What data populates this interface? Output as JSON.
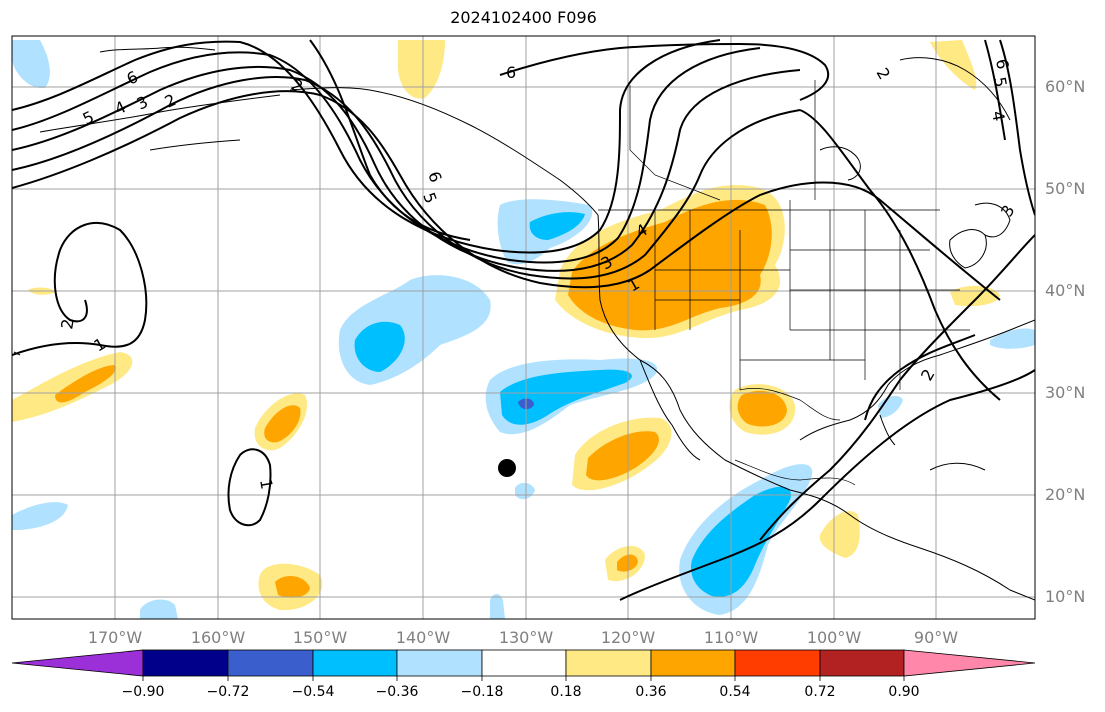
{
  "title": "2024102400 F096",
  "lat_labels": [
    "60°N",
    "50°N",
    "40°N",
    "30°N",
    "20°N",
    "10°N"
  ],
  "lon_labels": [
    "170°W",
    "160°W",
    "150°W",
    "140°W",
    "130°W",
    "120°W",
    "110°W",
    "100°W",
    "90°W"
  ],
  "colorbar": {
    "tick_labels": [
      "−0.90",
      "−0.72",
      "−0.54",
      "−0.36",
      "−0.18",
      "0.18",
      "0.36",
      "0.54",
      "0.72",
      "0.90"
    ],
    "colors": [
      "#9b30d9",
      "#00008b",
      "#3a5fcd",
      "#00bfff",
      "#b0e2ff",
      "#ffffff",
      "#ffe985",
      "#ffa500",
      "#ff3d00",
      "#b22222",
      "#ff88aa"
    ]
  },
  "contour_labels": [
    "6",
    "5",
    "4",
    "3",
    "2",
    "6",
    "6",
    "5",
    "4",
    "3",
    "1",
    "2",
    "1",
    "1",
    "2",
    "2",
    "3",
    "4",
    "5",
    "6",
    "2"
  ],
  "colors": {
    "light_blue": "#b0e2ff",
    "blue": "#00bfff",
    "dark_blue": "#3a5fcd",
    "light_yellow": "#ffe985",
    "orange": "#ffa500",
    "grid": "#a0a0a0"
  }
}
